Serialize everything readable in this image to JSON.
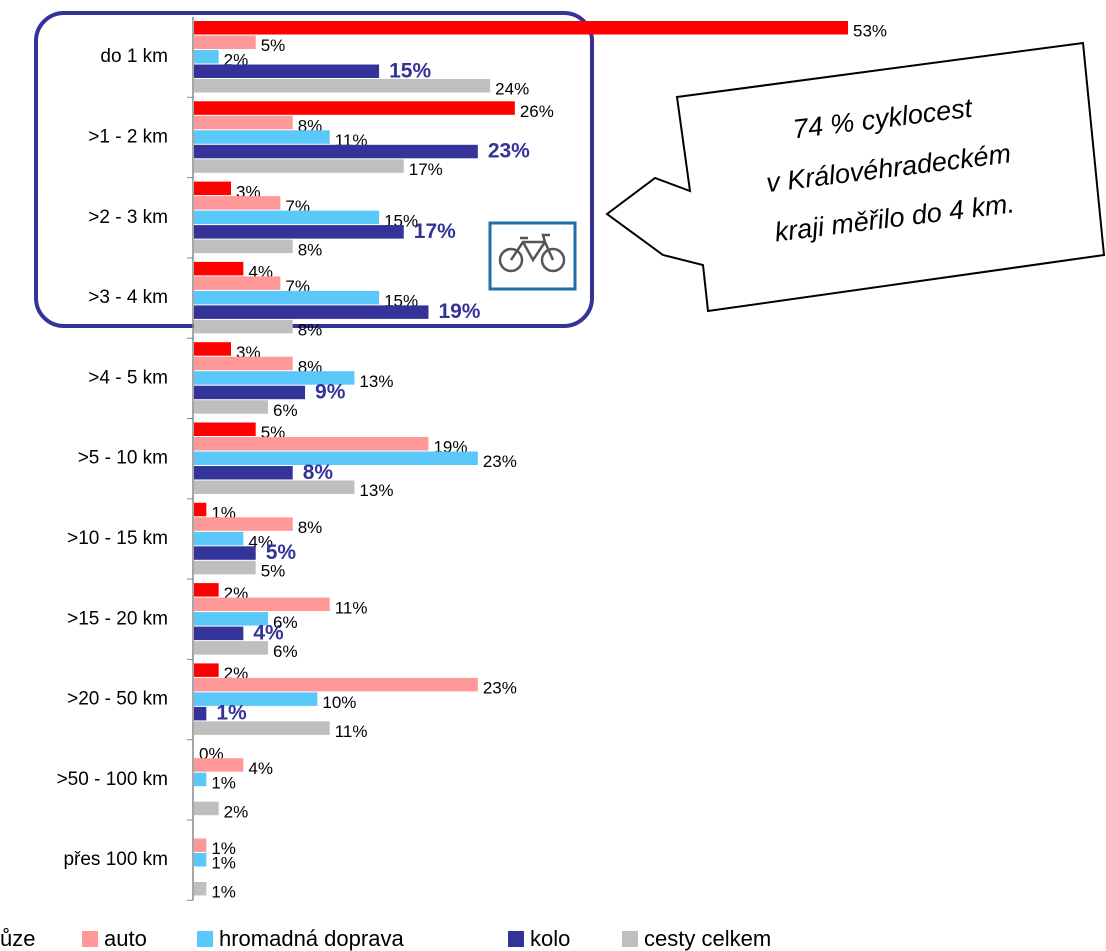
{
  "chart_data": {
    "type": "hbar",
    "categories": [
      "do 1 km",
      ">1 - 2 km",
      ">2 - 3 km",
      ">3 - 4 km",
      ">4 - 5 km",
      ">5 - 10 km",
      ">10 - 15 km",
      ">15 - 20 km",
      ">20 - 50 km",
      ">50 - 100 km",
      "přes 100 km"
    ],
    "series": [
      {
        "name": "ůze",
        "color": "#ff0000",
        "values": [
          53,
          26,
          3,
          4,
          3,
          5,
          1,
          2,
          2,
          0,
          null
        ],
        "value_labels": [
          "53%",
          "26%",
          "3%",
          "4%",
          "3%",
          "5%",
          "1%",
          "2%",
          "2%",
          "0%",
          null
        ]
      },
      {
        "name": "auto",
        "color": "#ff9999",
        "values": [
          5,
          8,
          7,
          7,
          8,
          19,
          8,
          11,
          23,
          4,
          1
        ],
        "value_labels": [
          "5%",
          "8%",
          "7%",
          "7%",
          "8%",
          "19%",
          "8%",
          "11%",
          "23%",
          "4%",
          "1%"
        ]
      },
      {
        "name": "hromadná doprava",
        "color": "#5bc8fa",
        "values": [
          2,
          11,
          15,
          15,
          13,
          23,
          4,
          6,
          10,
          1,
          1
        ],
        "value_labels": [
          "2%",
          "11%",
          "15%",
          "15%",
          "13%",
          "23%",
          "4%",
          "6%",
          "10%",
          "1%",
          "1%"
        ]
      },
      {
        "name": "kolo",
        "color": "#333399",
        "values": [
          15,
          23,
          17,
          19,
          9,
          8,
          5,
          4,
          1,
          null,
          null
        ],
        "value_labels": [
          "15%",
          "23%",
          "17%",
          "19%",
          "9%",
          "8%",
          "5%",
          "4%",
          "1%",
          null,
          null
        ]
      },
      {
        "name": "cesty celkem",
        "color": "#bfbfbf",
        "values": [
          24,
          17,
          8,
          8,
          6,
          13,
          5,
          6,
          11,
          2,
          1
        ],
        "value_labels": [
          "24%",
          "17%",
          "8%",
          "8%",
          "6%",
          "13%",
          "5%",
          "6%",
          "11%",
          "2%",
          "1%"
        ]
      }
    ],
    "annotation": [
      "74 % cyklocest",
      "v Královéhradeckém",
      "kraji měřilo do 4 km."
    ]
  }
}
